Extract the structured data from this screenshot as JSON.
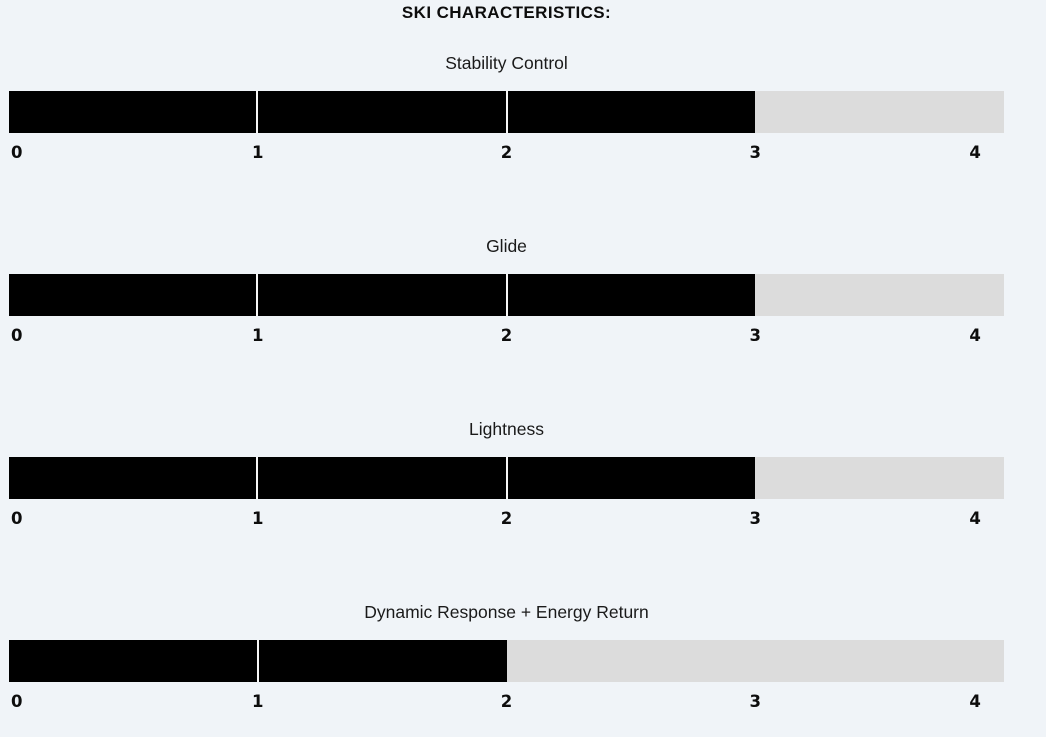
{
  "page": {
    "background": "#f0f4f8"
  },
  "chart_data": {
    "type": "bar",
    "orientation": "horizontal",
    "title": "SKI CHARACTERISTICS:",
    "categories": [
      "Stability Control",
      "Glide",
      "Lightness",
      "Dynamic Response + Energy Return"
    ],
    "values": [
      3,
      3,
      3,
      2
    ],
    "xlim": [
      0,
      4
    ],
    "tick_labels": [
      "0",
      "1",
      "2",
      "3",
      "4"
    ],
    "grid": false,
    "legend": false,
    "colors": {
      "fill": "#000000",
      "track": "#dcdcdc",
      "divider": "#f7f7f7",
      "text": "#111111",
      "background": "#f0f4f8"
    }
  }
}
